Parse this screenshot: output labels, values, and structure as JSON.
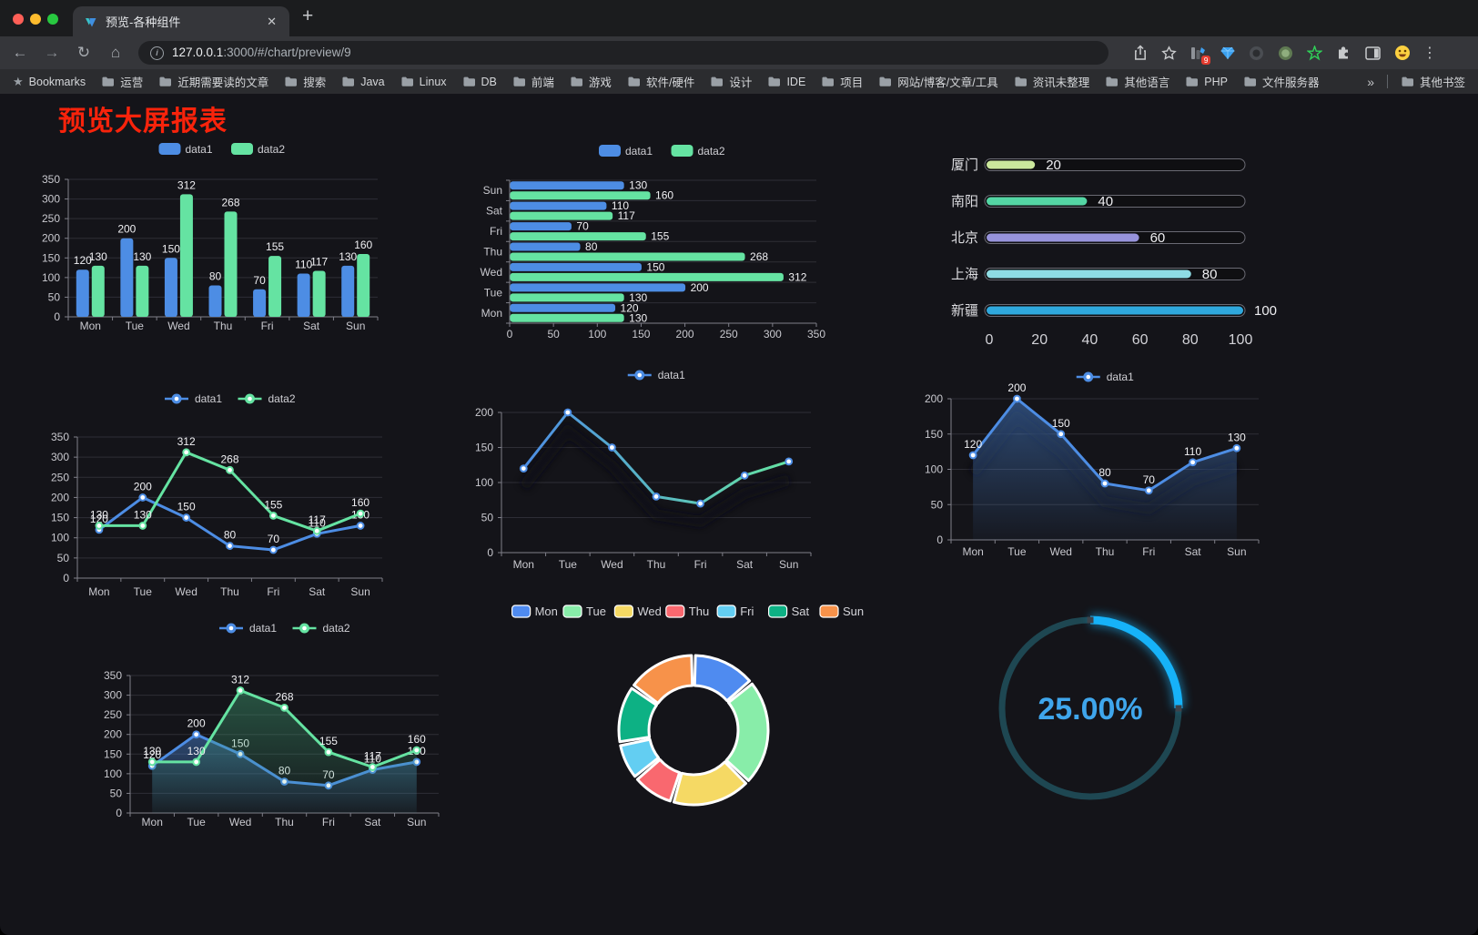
{
  "browser": {
    "traffic_lights": [
      "#ff5f57",
      "#febc2e",
      "#28c840"
    ],
    "tab": {
      "title": "预览-各种组件"
    },
    "icons": {
      "close": "✕",
      "new_tab": "+",
      "back": "←",
      "forward": "→",
      "reload": "↻",
      "home": "⌂",
      "menu_dots": "⋮",
      "bookmarks_star": "★",
      "overflow": "»"
    },
    "url": {
      "host": "127.0.0.1",
      "path": ":3000/#/chart/preview/9"
    },
    "extension_badge": "9",
    "bookmarks": {
      "manager_label": "Bookmarks",
      "folders": [
        "运营",
        "近期需要读的文章",
        "搜索",
        "Java",
        "Linux",
        "DB",
        "前端",
        "游戏",
        "软件/硬件",
        "设计",
        "IDE",
        "项目",
        "网站/博客/文章/工具",
        "资讯未整理",
        "其他语言",
        "PHP",
        "文件服务器"
      ],
      "other_label": "其他书签"
    }
  },
  "page": {
    "title": "预览大屏报表",
    "title_color": "#f8230b"
  },
  "chart_data": [
    {
      "type": "bar",
      "categories": [
        "Mon",
        "Tue",
        "Wed",
        "Thu",
        "Fri",
        "Sat",
        "Sun"
      ],
      "series": [
        {
          "name": "data1",
          "color": "#4d8de4",
          "values": [
            120,
            200,
            150,
            80,
            70,
            110,
            130
          ]
        },
        {
          "name": "data2",
          "color": "#65e3a2",
          "values": [
            130,
            130,
            312,
            268,
            155,
            117,
            160
          ]
        }
      ],
      "ylim": [
        0,
        350
      ],
      "yticks": [
        0,
        50,
        100,
        150,
        200,
        250,
        300,
        350
      ],
      "legend_position": "top",
      "grid": true
    },
    {
      "type": "bar",
      "orientation": "horizontal",
      "categories": [
        "Mon",
        "Tue",
        "Wed",
        "Thu",
        "Fri",
        "Sat",
        "Sun"
      ],
      "series": [
        {
          "name": "data1",
          "color": "#4d8de4",
          "values": [
            120,
            200,
            150,
            80,
            70,
            110,
            130
          ]
        },
        {
          "name": "data2",
          "color": "#65e3a2",
          "values": [
            130,
            130,
            312,
            268,
            155,
            117,
            160
          ]
        }
      ],
      "xlim": [
        0,
        350
      ],
      "xticks": [
        0,
        50,
        100,
        150,
        200,
        250,
        300,
        350
      ],
      "legend_position": "top"
    },
    {
      "type": "bar",
      "subtype": "progress-capsule",
      "rows": [
        {
          "label": "厦门",
          "value": 20,
          "color": "#cbe79c"
        },
        {
          "label": "南阳",
          "value": 40,
          "color": "#54d6a4"
        },
        {
          "label": "北京",
          "value": 60,
          "color": "#9793db"
        },
        {
          "label": "上海",
          "value": 80,
          "color": "#8edce4"
        },
        {
          "label": "新疆",
          "value": 100,
          "color": "#2fa8dd"
        }
      ],
      "xlim": [
        0,
        100
      ],
      "xticks": [
        0,
        20,
        40,
        60,
        80,
        100
      ]
    },
    {
      "type": "line",
      "categories": [
        "Mon",
        "Tue",
        "Wed",
        "Thu",
        "Fri",
        "Sat",
        "Sun"
      ],
      "series": [
        {
          "name": "data1",
          "color": "#4d8de4",
          "values": [
            120,
            200,
            150,
            80,
            70,
            110,
            130
          ]
        },
        {
          "name": "data2",
          "color": "#65e3a2",
          "values": [
            130,
            130,
            312,
            268,
            155,
            117,
            160
          ]
        }
      ],
      "ylim": [
        0,
        350
      ],
      "yticks": [
        0,
        50,
        100,
        150,
        200,
        250,
        300,
        350
      ],
      "show_labels": true
    },
    {
      "type": "line",
      "subtype": "gradient-stroke",
      "categories": [
        "Mon",
        "Tue",
        "Wed",
        "Thu",
        "Fri",
        "Sat",
        "Sun"
      ],
      "series": [
        {
          "name": "data1",
          "color": "#4d8de4",
          "values": [
            120,
            200,
            150,
            80,
            70,
            110,
            130
          ]
        }
      ],
      "gradient": [
        "#4d8de4",
        "#65e3a2"
      ],
      "ylim": [
        0,
        200
      ],
      "yticks": [
        0,
        50,
        100,
        150,
        200
      ],
      "show_labels": false
    },
    {
      "type": "area",
      "categories": [
        "Mon",
        "Tue",
        "Wed",
        "Thu",
        "Fri",
        "Sat",
        "Sun"
      ],
      "series": [
        {
          "name": "data1",
          "color": "#4d8de4",
          "area_color": "#4d8de4",
          "values": [
            120,
            200,
            150,
            80,
            70,
            110,
            130
          ]
        }
      ],
      "ylim": [
        0,
        200
      ],
      "yticks": [
        0,
        50,
        100,
        150,
        200
      ],
      "show_labels": true
    },
    {
      "type": "area",
      "categories": [
        "Mon",
        "Tue",
        "Wed",
        "Thu",
        "Fri",
        "Sat",
        "Sun"
      ],
      "series": [
        {
          "name": "data1",
          "color": "#4d8de4",
          "area_color": "#4d8de4",
          "values": [
            120,
            200,
            150,
            80,
            70,
            110,
            130
          ]
        },
        {
          "name": "data2",
          "color": "#65e3a2",
          "area_color": "#3f9f73",
          "values": [
            130,
            130,
            312,
            268,
            155,
            117,
            160
          ]
        }
      ],
      "ylim": [
        0,
        350
      ],
      "yticks": [
        0,
        50,
        100,
        150,
        200,
        250,
        300,
        350
      ],
      "show_labels": true
    },
    {
      "type": "pie",
      "subtype": "donut-rounded",
      "items": [
        {
          "label": "Mon",
          "value": 120,
          "color": "#4f8bf0"
        },
        {
          "label": "Tue",
          "value": 200,
          "color": "#88eda9"
        },
        {
          "label": "Wed",
          "value": 150,
          "color": "#f5d964"
        },
        {
          "label": "Thu",
          "value": 80,
          "color": "#f9686f"
        },
        {
          "label": "Fri",
          "value": 70,
          "color": "#63cef2"
        },
        {
          "label": "Sat",
          "value": 110,
          "color": "#0db184"
        },
        {
          "label": "Sun",
          "value": 130,
          "color": "#f7924a"
        }
      ],
      "legend_position": "top"
    },
    {
      "type": "gauge",
      "value": 25,
      "label": "25.00%",
      "color": "#16b2f8",
      "track_color": "#1e4752",
      "text_color": "#3fa6ec"
    }
  ]
}
